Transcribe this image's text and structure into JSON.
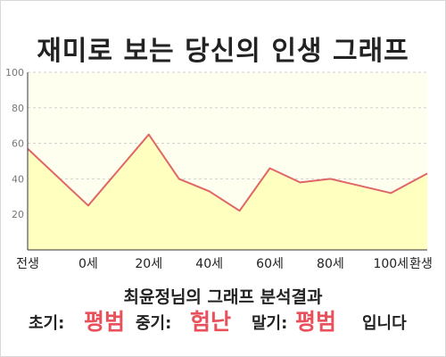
{
  "title": "재미로 보는 당신의 인생 그래프",
  "chart_data": {
    "type": "area",
    "title": "재미로 보는 당신의 인생 그래프",
    "x": [
      -20,
      0,
      20,
      30,
      40,
      50,
      60,
      70,
      80,
      100,
      112
    ],
    "y": [
      57,
      25,
      65,
      40,
      33,
      22,
      46,
      38,
      40,
      32,
      43
    ],
    "xticks": [
      {
        "x": -20,
        "label": "전생"
      },
      {
        "x": 0,
        "label": "0세"
      },
      {
        "x": 20,
        "label": "20세"
      },
      {
        "x": 40,
        "label": "40세"
      },
      {
        "x": 60,
        "label": "60세"
      },
      {
        "x": 80,
        "label": "80세"
      },
      {
        "x": 100,
        "label": "100세"
      },
      {
        "x": 112,
        "label": "환생"
      }
    ],
    "yticks": [
      20,
      40,
      60,
      80,
      100
    ],
    "ylim": [
      0,
      100
    ],
    "xlim": [
      -20,
      112
    ],
    "grid": true,
    "line_color": "#e06666",
    "fill_color": "#ffffc0",
    "plot_bg": "#fffff0"
  },
  "summary": {
    "title": "최윤정님의 그래프 분석결과",
    "early_label": "초기:",
    "early_value": "평범",
    "mid_label": "중기:",
    "mid_value": "험난",
    "late_label": "말기:",
    "late_value": "평범",
    "suffix": "입니다"
  }
}
